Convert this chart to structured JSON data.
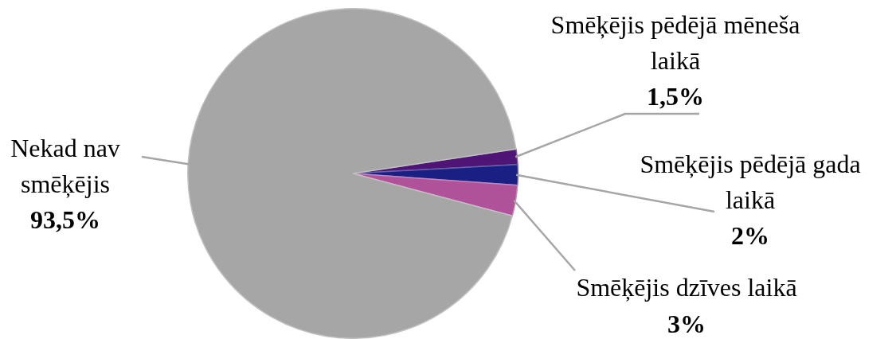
{
  "chart_data": {
    "type": "pie",
    "categories": [
      "Smēķējis pēdējā mēneša laikā",
      "Smēķējis pēdējā gada laikā",
      "Smēķējis dzīves laikā",
      "Nekad nav smēķējis"
    ],
    "values": [
      1.5,
      2,
      3,
      93.5
    ],
    "colors": [
      "#4e1476",
      "#1a1f84",
      "#b0529a",
      "#a6a6a6"
    ],
    "value_labels": [
      "1,5%",
      "2%",
      "3%",
      "93,5%"
    ],
    "legend": false
  }
}
